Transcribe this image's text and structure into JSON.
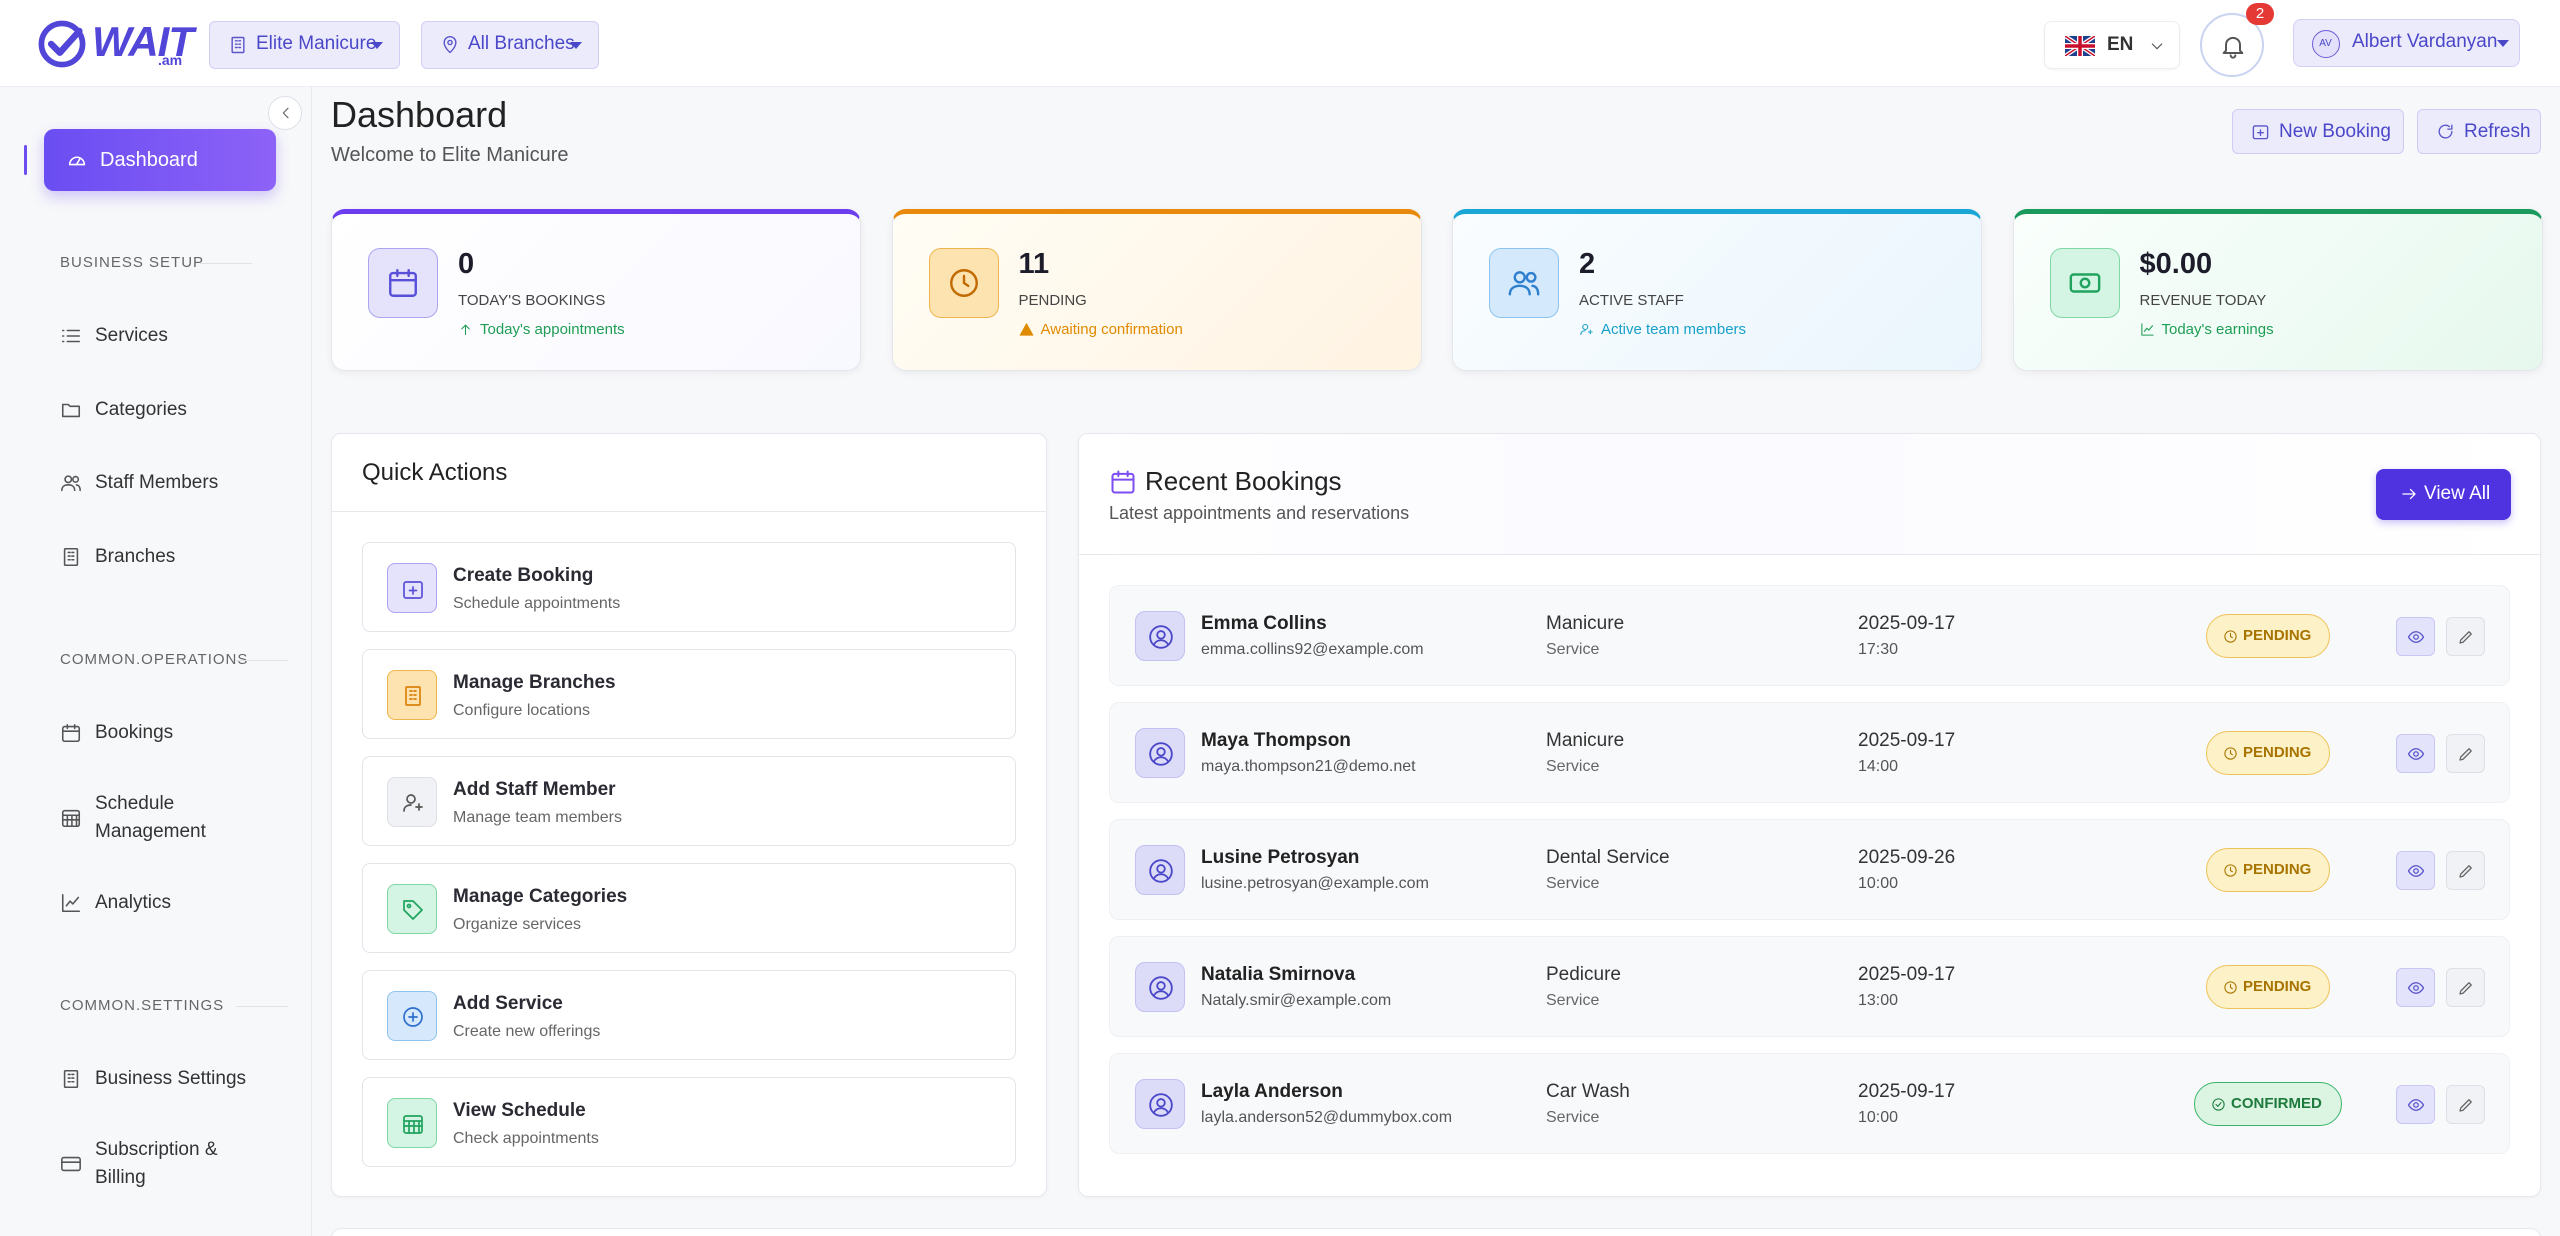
{
  "header": {
    "brand": "WAIT",
    "brand_sub": ".am",
    "business": "Elite Manicure",
    "branch": "All Branches",
    "language": "EN",
    "notification_count": 2,
    "user_initials": "AV",
    "user_name": "Albert Vardanyan"
  },
  "sidebar": {
    "active": "Dashboard",
    "sections": [
      {
        "title": "BUSINESS SETUP",
        "items": [
          "Services",
          "Categories",
          "Staff Members",
          "Branches"
        ]
      },
      {
        "title": "COMMON.OPERATIONS",
        "items": [
          "Bookings",
          "Schedule Management",
          "Analytics"
        ]
      },
      {
        "title": "COMMON.SETTINGS",
        "items": [
          "Business Settings",
          "Subscription & Billing"
        ]
      }
    ]
  },
  "page": {
    "title": "Dashboard",
    "subtitle": "Welcome to Elite Manicure",
    "actions": [
      "New Booking",
      "Refresh"
    ]
  },
  "stats": [
    {
      "value": 0,
      "label": "TODAY'S BOOKINGS",
      "note": "Today's appointments"
    },
    {
      "value": 11,
      "label": "PENDING",
      "note": "Awaiting confirmation"
    },
    {
      "value": 2,
      "label": "ACTIVE STAFF",
      "note": "Active team members"
    },
    {
      "value": "$0.00",
      "label": "REVENUE TODAY",
      "note": "Today's earnings"
    }
  ],
  "quick_actions": {
    "title": "Quick Actions",
    "items": [
      {
        "title": "Create Booking",
        "subtitle": "Schedule appointments"
      },
      {
        "title": "Manage Branches",
        "subtitle": "Configure locations"
      },
      {
        "title": "Add Staff Member",
        "subtitle": "Manage team members"
      },
      {
        "title": "Manage Categories",
        "subtitle": "Organize services"
      },
      {
        "title": "Add Service",
        "subtitle": "Create new offerings"
      },
      {
        "title": "View Schedule",
        "subtitle": "Check appointments"
      }
    ]
  },
  "recent_bookings": {
    "title": "Recent Bookings",
    "subtitle": "Latest appointments and reservations",
    "view_all": "View All",
    "rows": [
      {
        "name": "Emma Collins",
        "email": "emma.collins92@example.com",
        "service": "Manicure",
        "service_label": "Service",
        "date": "2025-09-17",
        "time": "17:30",
        "status": "PENDING"
      },
      {
        "name": "Maya Thompson",
        "email": "maya.thompson21@demo.net",
        "service": "Manicure",
        "service_label": "Service",
        "date": "2025-09-17",
        "time": "14:00",
        "status": "PENDING"
      },
      {
        "name": "Lusine Petrosyan",
        "email": "lusine.petrosyan@example.com",
        "service": "Dental Service",
        "service_label": "Service",
        "date": "2025-09-26",
        "time": "10:00",
        "status": "PENDING"
      },
      {
        "name": "Natalia Smirnova",
        "email": "Nataly.smir@example.com",
        "service": "Pedicure",
        "service_label": "Service",
        "date": "2025-09-17",
        "time": "13:00",
        "status": "PENDING"
      },
      {
        "name": "Layla Anderson",
        "email": "layla.anderson52@dummybox.com",
        "service": "Car Wash",
        "service_label": "Service",
        "date": "2025-09-17",
        "time": "10:00",
        "status": "CONFIRMED"
      }
    ]
  }
}
